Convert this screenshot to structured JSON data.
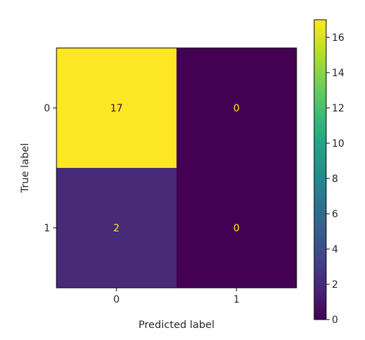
{
  "chart_data": {
    "type": "heatmap",
    "title": "",
    "xlabel": "Predicted label",
    "ylabel": "True label",
    "x_categories": [
      "0",
      "1"
    ],
    "y_categories": [
      "0",
      "1"
    ],
    "values": [
      [
        17,
        0
      ],
      [
        2,
        0
      ]
    ],
    "cell_labels": [
      [
        "17",
        "0"
      ],
      [
        "2",
        "0"
      ]
    ],
    "colormap": "viridis",
    "colorbar": {
      "range": [
        0,
        17
      ],
      "ticks": [
        0,
        2,
        4,
        6,
        8,
        10,
        12,
        14,
        16
      ],
      "tick_labels": [
        "0",
        "2",
        "4",
        "6",
        "8",
        "10",
        "12",
        "14",
        "16"
      ]
    },
    "colors": {
      "max": "#fde725",
      "min": "#440154",
      "light_text": "#fde725",
      "dark_text": "#440154"
    }
  }
}
